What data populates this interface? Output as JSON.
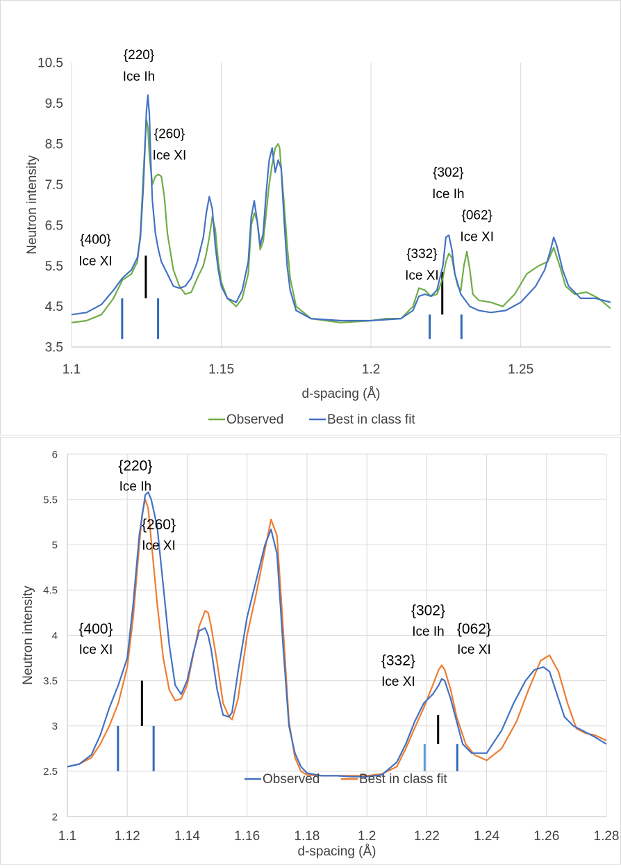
{
  "chart_data": [
    {
      "type": "line",
      "xlabel": "d-spacing (Å)",
      "ylabel": "Neutron intensity",
      "xlim": [
        1.1,
        1.28
      ],
      "ylim": [
        3.5,
        10.5
      ],
      "xticks": [
        1.1,
        1.15,
        1.2,
        1.25
      ],
      "xtick_labels": [
        "1.1",
        "1.15",
        "1.2",
        "1.25"
      ],
      "yticks": [
        3.5,
        4.5,
        5.5,
        6.5,
        7.5,
        8.5,
        9.5,
        10.5
      ],
      "ytick_labels": [
        "3.5",
        "4.5",
        "5.5",
        "6.5",
        "7.5",
        "8.5",
        "9.5",
        "10.5"
      ],
      "grid": "vertical",
      "legend": "bottom",
      "series": [
        {
          "name": "Observed",
          "color": "#70ad47",
          "x": [
            1.1,
            1.105,
            1.11,
            1.114,
            1.117,
            1.12,
            1.122,
            1.123,
            1.124,
            1.125,
            1.1255,
            1.126,
            1.127,
            1.128,
            1.129,
            1.13,
            1.131,
            1.132,
            1.134,
            1.136,
            1.138,
            1.14,
            1.142,
            1.144,
            1.145,
            1.146,
            1.147,
            1.148,
            1.149,
            1.15,
            1.152,
            1.155,
            1.157,
            1.159,
            1.16,
            1.161,
            1.162,
            1.163,
            1.164,
            1.165,
            1.166,
            1.167,
            1.168,
            1.169,
            1.1695,
            1.17,
            1.171,
            1.172,
            1.173,
            1.175,
            1.18,
            1.19,
            1.2,
            1.205,
            1.21,
            1.214,
            1.216,
            1.218,
            1.22,
            1.222,
            1.224,
            1.225,
            1.226,
            1.227,
            1.228,
            1.229,
            1.23,
            1.231,
            1.232,
            1.233,
            1.234,
            1.236,
            1.24,
            1.244,
            1.248,
            1.252,
            1.256,
            1.259,
            1.261,
            1.263,
            1.265,
            1.268,
            1.272,
            1.276,
            1.28
          ],
          "y": [
            4.1,
            4.15,
            4.3,
            4.7,
            5.15,
            5.3,
            5.6,
            6.3,
            7.8,
            9.1,
            8.9,
            8.2,
            7.5,
            7.7,
            7.75,
            7.7,
            7.2,
            6.3,
            5.4,
            5.0,
            4.8,
            4.85,
            5.2,
            5.5,
            5.8,
            6.2,
            6.7,
            6.4,
            5.6,
            5.1,
            4.7,
            4.5,
            4.7,
            5.3,
            6.5,
            6.8,
            6.6,
            5.9,
            6.1,
            6.8,
            7.5,
            8.0,
            8.4,
            8.5,
            8.4,
            7.9,
            7.0,
            6.0,
            5.2,
            4.5,
            4.2,
            4.1,
            4.15,
            4.2,
            4.2,
            4.5,
            4.95,
            4.9,
            4.75,
            4.8,
            5.2,
            5.6,
            5.8,
            5.7,
            5.3,
            5.0,
            4.9,
            5.5,
            5.85,
            5.4,
            4.8,
            4.65,
            4.6,
            4.5,
            4.8,
            5.3,
            5.5,
            5.6,
            5.95,
            5.5,
            5.0,
            4.8,
            4.85,
            4.7,
            4.45
          ]
        },
        {
          "name": "Best in class fit",
          "color": "#4472c4",
          "x": [
            1.1,
            1.105,
            1.11,
            1.114,
            1.117,
            1.12,
            1.122,
            1.123,
            1.124,
            1.125,
            1.1255,
            1.126,
            1.1265,
            1.127,
            1.128,
            1.129,
            1.13,
            1.132,
            1.134,
            1.136,
            1.138,
            1.14,
            1.142,
            1.144,
            1.145,
            1.146,
            1.147,
            1.148,
            1.149,
            1.15,
            1.152,
            1.155,
            1.157,
            1.159,
            1.16,
            1.161,
            1.162,
            1.163,
            1.164,
            1.165,
            1.166,
            1.167,
            1.168,
            1.169,
            1.17,
            1.171,
            1.172,
            1.173,
            1.175,
            1.18,
            1.19,
            1.2,
            1.21,
            1.214,
            1.216,
            1.218,
            1.22,
            1.222,
            1.224,
            1.225,
            1.226,
            1.227,
            1.228,
            1.23,
            1.233,
            1.236,
            1.24,
            1.245,
            1.25,
            1.255,
            1.258,
            1.26,
            1.261,
            1.262,
            1.264,
            1.266,
            1.27,
            1.275,
            1.28
          ],
          "y": [
            4.3,
            4.35,
            4.55,
            4.9,
            5.2,
            5.4,
            5.7,
            6.2,
            7.5,
            9.3,
            9.7,
            9.2,
            8.0,
            7.1,
            6.3,
            5.9,
            5.6,
            5.3,
            5.0,
            4.95,
            5.0,
            5.2,
            5.6,
            6.2,
            6.8,
            7.2,
            6.9,
            6.0,
            5.4,
            5.0,
            4.7,
            4.6,
            4.9,
            5.6,
            6.7,
            7.1,
            6.6,
            6.0,
            6.3,
            7.3,
            8.1,
            8.4,
            7.8,
            8.1,
            7.9,
            6.6,
            5.5,
            4.9,
            4.4,
            4.2,
            4.15,
            4.15,
            4.2,
            4.4,
            4.75,
            4.8,
            4.75,
            4.9,
            5.5,
            6.2,
            6.25,
            5.9,
            5.3,
            4.8,
            4.5,
            4.4,
            4.35,
            4.4,
            4.6,
            5.0,
            5.4,
            5.9,
            6.2,
            6.0,
            5.4,
            5.0,
            4.7,
            4.7,
            4.6
          ]
        }
      ],
      "annotations": [
        {
          "lines": [
            "{220}",
            "Ice Ih"
          ],
          "x": 1.1225,
          "y_top": 10.85
        },
        {
          "lines": [
            "{260}",
            "Ice XI"
          ],
          "x": 1.1327,
          "y_top": 8.9
        },
        {
          "lines": [
            "{400}",
            "Ice XI"
          ],
          "x": 1.108,
          "y_top": 6.3
        },
        {
          "lines": [
            "{302}",
            "Ice Ih"
          ],
          "x": 1.2258,
          "y_top": 7.95
        },
        {
          "lines": [
            "{062}",
            "Ice XI"
          ],
          "x": 1.2354,
          "y_top": 6.9
        },
        {
          "lines": [
            "{332}",
            "Ice XI"
          ],
          "x": 1.217,
          "y_top": 5.95
        }
      ],
      "reflection_markers": [
        {
          "x": 1.1169,
          "y0": 3.7,
          "y1": 4.7,
          "color": "#2e6bb7"
        },
        {
          "x": 1.1289,
          "y0": 3.7,
          "y1": 4.7,
          "color": "#2e6bb7"
        },
        {
          "x": 1.1248,
          "y0": 4.7,
          "y1": 5.75,
          "color": "#000000"
        },
        {
          "x": 1.2196,
          "y0": 3.7,
          "y1": 4.3,
          "color": "#2e6bb7"
        },
        {
          "x": 1.2238,
          "y0": 4.3,
          "y1": 5.35,
          "color": "#000000"
        },
        {
          "x": 1.2302,
          "y0": 3.7,
          "y1": 4.3,
          "color": "#2e6bb7"
        }
      ]
    },
    {
      "type": "line",
      "xlabel": "d-spacing (Å)",
      "ylabel": "Neutron intensity",
      "xlim": [
        1.1,
        1.28
      ],
      "ylim": [
        2,
        6
      ],
      "xticks": [
        1.1,
        1.12,
        1.14,
        1.16,
        1.18,
        1.2,
        1.22,
        1.24,
        1.26,
        1.28
      ],
      "xtick_labels": [
        "1.1",
        "1.12",
        "1.14",
        "1.16",
        "1.18",
        "1.2",
        "1.22",
        "1.24",
        "1.26",
        "1.28"
      ],
      "yticks": [
        2,
        2.5,
        3,
        3.5,
        4,
        4.5,
        5,
        5.5,
        6
      ],
      "ytick_labels": [
        "2",
        "2.5",
        "3",
        "3.5",
        "4",
        "4.5",
        "5",
        "5.5",
        "6"
      ],
      "grid": "both",
      "legend": "inside-bottom",
      "series": [
        {
          "name": "Observed",
          "color": "#4472c4",
          "x": [
            1.1,
            1.104,
            1.108,
            1.111,
            1.114,
            1.117,
            1.12,
            1.122,
            1.124,
            1.126,
            1.127,
            1.128,
            1.13,
            1.132,
            1.134,
            1.136,
            1.138,
            1.14,
            1.142,
            1.144,
            1.146,
            1.147,
            1.148,
            1.15,
            1.152,
            1.154,
            1.155,
            1.157,
            1.16,
            1.163,
            1.166,
            1.168,
            1.17,
            1.172,
            1.174,
            1.176,
            1.178,
            1.18,
            1.185,
            1.19,
            1.195,
            1.2,
            1.205,
            1.21,
            1.213,
            1.216,
            1.219,
            1.222,
            1.224,
            1.225,
            1.226,
            1.228,
            1.23,
            1.232,
            1.235,
            1.24,
            1.245,
            1.249,
            1.253,
            1.256,
            1.259,
            1.261,
            1.263,
            1.266,
            1.269,
            1.272,
            1.276,
            1.28
          ],
          "y": [
            2.55,
            2.58,
            2.68,
            2.9,
            3.2,
            3.45,
            3.75,
            4.35,
            5.1,
            5.55,
            5.58,
            5.5,
            5.2,
            4.55,
            3.9,
            3.45,
            3.35,
            3.5,
            3.8,
            4.05,
            4.08,
            4.0,
            3.85,
            3.4,
            3.12,
            3.1,
            3.15,
            3.6,
            4.2,
            4.6,
            5.0,
            5.17,
            4.9,
            3.9,
            3.0,
            2.7,
            2.55,
            2.48,
            2.45,
            2.45,
            2.44,
            2.44,
            2.46,
            2.6,
            2.8,
            3.05,
            3.25,
            3.35,
            3.45,
            3.52,
            3.5,
            3.3,
            3.05,
            2.8,
            2.7,
            2.7,
            2.95,
            3.25,
            3.5,
            3.62,
            3.65,
            3.6,
            3.4,
            3.1,
            3.0,
            2.95,
            2.88,
            2.8
          ]
        },
        {
          "name": "Best in class fit",
          "color": "#ed7d31",
          "x": [
            1.1,
            1.104,
            1.108,
            1.111,
            1.114,
            1.117,
            1.12,
            1.122,
            1.124,
            1.125,
            1.126,
            1.127,
            1.128,
            1.13,
            1.132,
            1.134,
            1.136,
            1.138,
            1.14,
            1.142,
            1.144,
            1.146,
            1.147,
            1.148,
            1.15,
            1.152,
            1.154,
            1.155,
            1.157,
            1.16,
            1.163,
            1.166,
            1.168,
            1.17,
            1.172,
            1.174,
            1.176,
            1.178,
            1.18,
            1.185,
            1.19,
            1.195,
            1.2,
            1.205,
            1.21,
            1.213,
            1.216,
            1.219,
            1.222,
            1.224,
            1.225,
            1.226,
            1.228,
            1.23,
            1.233,
            1.236,
            1.24,
            1.245,
            1.25,
            1.254,
            1.258,
            1.261,
            1.264,
            1.267,
            1.27,
            1.273,
            1.276,
            1.28
          ],
          "y": [
            2.55,
            2.58,
            2.65,
            2.8,
            3.0,
            3.25,
            3.65,
            4.2,
            5.0,
            5.35,
            5.5,
            5.4,
            5.05,
            4.35,
            3.75,
            3.4,
            3.28,
            3.3,
            3.45,
            3.78,
            4.1,
            4.27,
            4.25,
            4.1,
            3.7,
            3.25,
            3.1,
            3.07,
            3.3,
            4.0,
            4.45,
            4.95,
            5.28,
            5.1,
            4.1,
            3.05,
            2.65,
            2.5,
            2.46,
            2.45,
            2.45,
            2.45,
            2.45,
            2.47,
            2.55,
            2.75,
            2.98,
            3.2,
            3.45,
            3.62,
            3.67,
            3.62,
            3.4,
            3.1,
            2.8,
            2.68,
            2.62,
            2.75,
            3.05,
            3.4,
            3.72,
            3.78,
            3.6,
            3.25,
            2.97,
            2.92,
            2.9,
            2.84
          ]
        }
      ],
      "annotations": [
        {
          "lines": [
            "{220}",
            "Ice Ih"
          ],
          "x": 1.1227,
          "y_top": 5.95
        },
        {
          "lines": [
            "{260}",
            "Ice XI"
          ],
          "x": 1.1305,
          "y_top": 5.3
        },
        {
          "lines": [
            "{400}",
            "Ice XI"
          ],
          "x": 1.1095,
          "y_top": 4.15
        },
        {
          "lines": [
            "{302}",
            "Ice Ih"
          ],
          "x": 1.2205,
          "y_top": 4.35
        },
        {
          "lines": [
            "{062}",
            "Ice XI"
          ],
          "x": 1.2358,
          "y_top": 4.15
        },
        {
          "lines": [
            "{332}",
            "Ice XI"
          ],
          "x": 1.2105,
          "y_top": 3.8
        }
      ],
      "reflection_markers": [
        {
          "x": 1.1169,
          "y0": 2.5,
          "y1": 3.0,
          "color": "#2e6bb7"
        },
        {
          "x": 1.1288,
          "y0": 2.5,
          "y1": 3.0,
          "color": "#2e6bb7"
        },
        {
          "x": 1.1249,
          "y0": 3.0,
          "y1": 3.5,
          "color": "#000000"
        },
        {
          "x": 1.2193,
          "y0": 2.5,
          "y1": 2.8,
          "color": "#5b9bd5"
        },
        {
          "x": 1.2238,
          "y0": 2.8,
          "y1": 3.12,
          "color": "#000000"
        },
        {
          "x": 1.2302,
          "y0": 2.5,
          "y1": 2.8,
          "color": "#2e6bb7"
        }
      ]
    }
  ]
}
